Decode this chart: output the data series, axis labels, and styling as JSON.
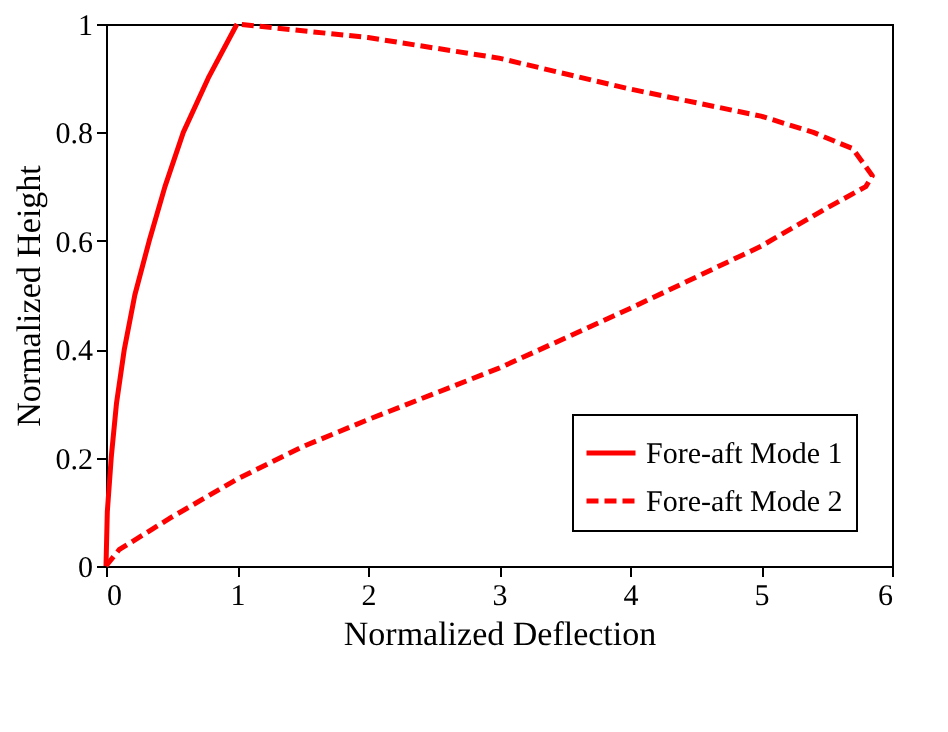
{
  "chart_data": {
    "type": "line",
    "xlabel": "Normalized Deflection",
    "ylabel": "Normalized Height",
    "xlim": [
      0,
      6
    ],
    "ylim": [
      0,
      1
    ],
    "xticks": [
      0,
      1,
      2,
      3,
      4,
      5,
      6
    ],
    "yticks": [
      0,
      0.2,
      0.4,
      0.6,
      0.8,
      1
    ],
    "grid": false,
    "legend": "bottom right",
    "marker": "none",
    "series": [
      {
        "name": "Fore-aft Mode 1",
        "color": "#ff0000",
        "line_style": "solid",
        "x": [
          0,
          0.01,
          0.04,
          0.08,
          0.14,
          0.22,
          0.33,
          0.45,
          0.59,
          0.78,
          1.0
        ],
        "values": [
          0,
          0.1,
          0.2,
          0.3,
          0.4,
          0.5,
          0.6,
          0.7,
          0.8,
          0.9,
          1.0
        ]
      },
      {
        "name": "Fore-aft Mode 2",
        "color": "#ff0000",
        "line_style": "dashed",
        "x": [
          0,
          0.1,
          0.5,
          1.0,
          1.5,
          2.0,
          3.0,
          4.0,
          5.0,
          5.5,
          5.8,
          5.85,
          5.7,
          5.4,
          5.0,
          4.0,
          3.0,
          2.0,
          1.0
        ],
        "values": [
          0,
          0.03,
          0.09,
          0.16,
          0.22,
          0.27,
          0.365,
          0.475,
          0.59,
          0.66,
          0.7,
          0.72,
          0.77,
          0.8,
          0.83,
          0.88,
          0.937,
          0.975,
          1.0
        ]
      }
    ]
  }
}
